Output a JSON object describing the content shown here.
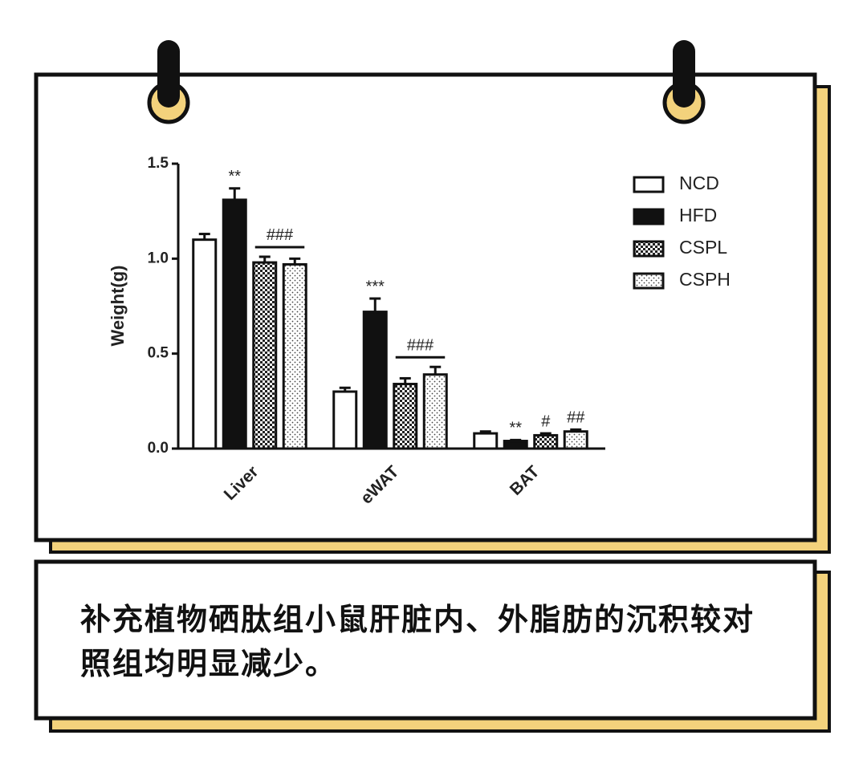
{
  "chart_data": {
    "type": "bar",
    "y_label": "Weight(g)",
    "categories": [
      "Liver",
      "eWAT",
      "BAT"
    ],
    "series": [
      {
        "name": "NCD",
        "color": "#ffffff",
        "pattern": "solid",
        "values": [
          1.1,
          0.3,
          0.08
        ],
        "errors": [
          0.03,
          0.02,
          0.01
        ]
      },
      {
        "name": "HFD",
        "color": "#111111",
        "pattern": "solid",
        "values": [
          1.31,
          0.72,
          0.04
        ],
        "errors": [
          0.06,
          0.07,
          0.005
        ]
      },
      {
        "name": "CSPL",
        "color": "#111111",
        "pattern": "checker",
        "values": [
          0.98,
          0.34,
          0.07
        ],
        "errors": [
          0.03,
          0.03,
          0.01
        ]
      },
      {
        "name": "CSPH",
        "color": "#111111",
        "pattern": "dots",
        "values": [
          0.97,
          0.39,
          0.09
        ],
        "errors": [
          0.03,
          0.04,
          0.01
        ]
      }
    ],
    "ylim": [
      0,
      1.5
    ],
    "yticks": [
      {
        "value": 0,
        "label": "0.0"
      },
      {
        "value": 0.5,
        "label": "0.5"
      },
      {
        "value": 1,
        "label": "1.0"
      },
      {
        "value": 1.5,
        "label": "1.5"
      }
    ],
    "legend": "top-right",
    "annotations": [
      {
        "text": "**",
        "category": "Liver",
        "series": [
          "HFD"
        ]
      },
      {
        "text": "###",
        "category": "Liver",
        "series": [
          "CSPL",
          "CSPH"
        ]
      },
      {
        "text": "***",
        "category": "eWAT",
        "series": [
          "HFD"
        ]
      },
      {
        "text": "###",
        "category": "eWAT",
        "series": [
          "CSPL",
          "CSPH"
        ]
      },
      {
        "text": "**",
        "category": "BAT",
        "series": [
          "HFD"
        ]
      },
      {
        "text": "#",
        "category": "BAT",
        "series": [
          "CSPL"
        ]
      },
      {
        "text": "##",
        "category": "BAT",
        "series": [
          "CSPH"
        ]
      }
    ]
  },
  "caption": {
    "lines": [
      "补充植物硒肽组小鼠肝脏内、外脂肪的沉积较对",
      "照组均明显减少。"
    ]
  }
}
